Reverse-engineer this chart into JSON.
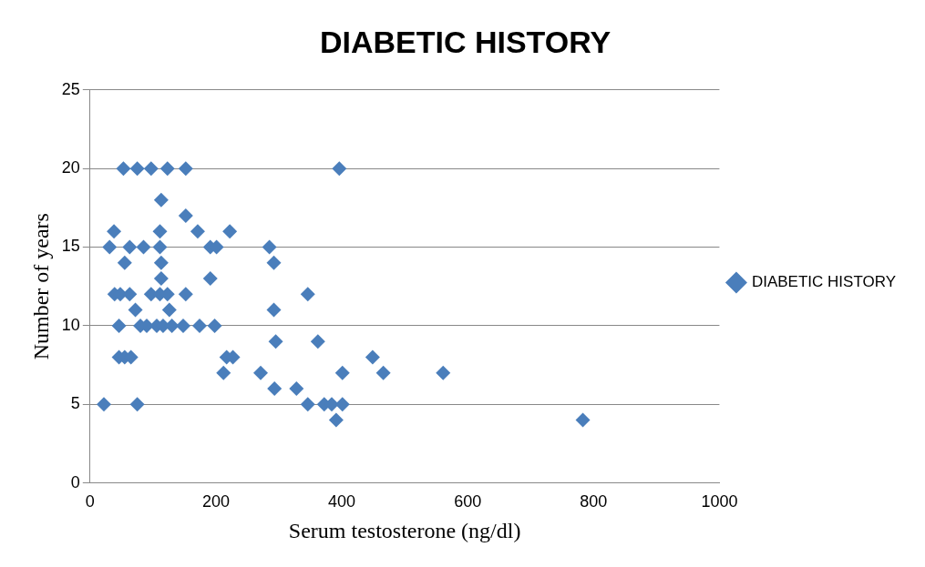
{
  "chart_data": {
    "type": "scatter",
    "title": "DIABETIC HISTORY",
    "xlabel": "Serum testosterone (ng/dl)",
    "ylabel": "Number of years",
    "xlim": [
      0,
      1000
    ],
    "xticks": [
      0,
      200,
      400,
      600,
      800,
      1000
    ],
    "ylim": [
      0,
      25
    ],
    "yticks": [
      0,
      5,
      10,
      15,
      20,
      25
    ],
    "grid": "y",
    "legend": "right",
    "marker": "diamond",
    "series": [
      {
        "name": "DIABETIC HISTORY",
        "color": "#4a7ebb",
        "x": [
          53,
          75,
          97,
          123,
          152,
          396,
          113,
          152,
          38,
          111,
          171,
          222,
          31,
          63,
          85,
          111,
          191,
          201,
          285,
          55,
          113,
          292,
          113,
          191,
          39,
          48,
          63,
          97,
          111,
          123,
          152,
          346,
          72,
          126,
          292,
          46,
          80,
          90,
          106,
          116,
          130,
          148,
          174,
          198,
          295,
          362,
          46,
          55,
          65,
          217,
          227,
          449,
          212,
          271,
          401,
          466,
          561,
          293,
          328,
          22,
          75,
          346,
          372,
          384,
          401,
          391,
          783
        ],
        "values": [
          20,
          20,
          20,
          20,
          20,
          20,
          18,
          17,
          16,
          16,
          16,
          16,
          15,
          15,
          15,
          15,
          15,
          15,
          15,
          14,
          14,
          14,
          13,
          13,
          12,
          12,
          12,
          12,
          12,
          12,
          12,
          12,
          11,
          11,
          11,
          10,
          10,
          10,
          10,
          10,
          10,
          10,
          10,
          10,
          9,
          9,
          8,
          8,
          8,
          8,
          8,
          8,
          7,
          7,
          7,
          7,
          7,
          6,
          6,
          5,
          5,
          5,
          5,
          5,
          5,
          4,
          4
        ]
      }
    ]
  }
}
